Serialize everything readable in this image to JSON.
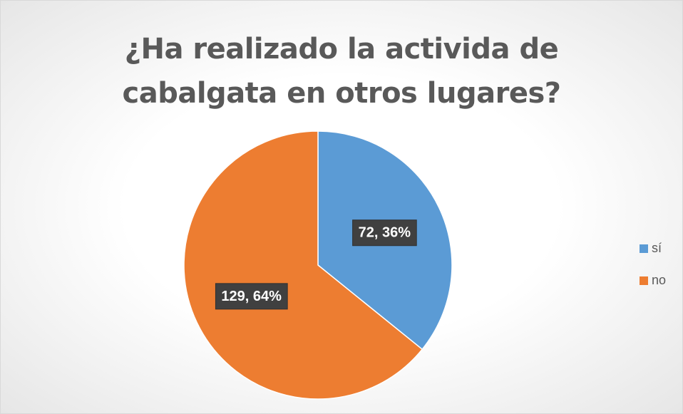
{
  "chart_data": {
    "type": "pie",
    "title": "¿Ha realizado la activida de cabalgata en otros lugares?",
    "categories": [
      "sí",
      "no"
    ],
    "values": [
      72,
      129
    ],
    "value_labels": [
      "72, 36%",
      "129, 64%"
    ],
    "colors": [
      "#5b9bd5",
      "#ed7d31"
    ],
    "legend": "right"
  }
}
